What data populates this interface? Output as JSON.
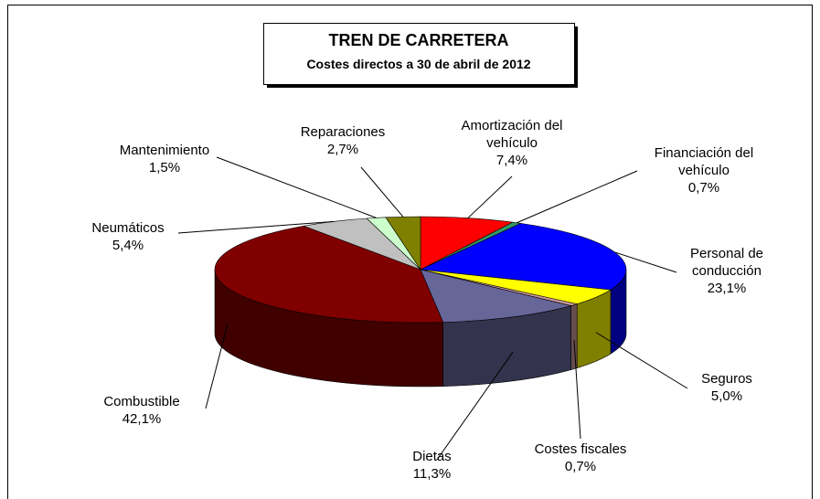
{
  "chart_data": {
    "type": "pie3d",
    "title": "TREN DE CARRETERA",
    "subtitle": "Costes directos a 30 de abril de 2012",
    "categories": [
      "Amortización del vehículo",
      "Financiación del vehículo",
      "Personal de conducción",
      "Seguros",
      "Costes fiscales",
      "Dietas",
      "Combustible",
      "Neumáticos",
      "Mantenimiento",
      "Reparaciones"
    ],
    "values": [
      7.4,
      0.7,
      23.1,
      5.0,
      0.7,
      11.3,
      42.1,
      5.4,
      1.5,
      2.7
    ],
    "value_labels": [
      "7,4%",
      "0,7%",
      "23,1%",
      "5,0%",
      "0,7%",
      "11,3%",
      "42,1%",
      "5,4%",
      "1,5%",
      "2,7%"
    ],
    "colors": [
      "#ff0000",
      "#339966",
      "#0000ff",
      "#ffff00",
      "#cc9999",
      "#666699",
      "#800000",
      "#c0c0c0",
      "#ccffcc",
      "#808000"
    ]
  }
}
